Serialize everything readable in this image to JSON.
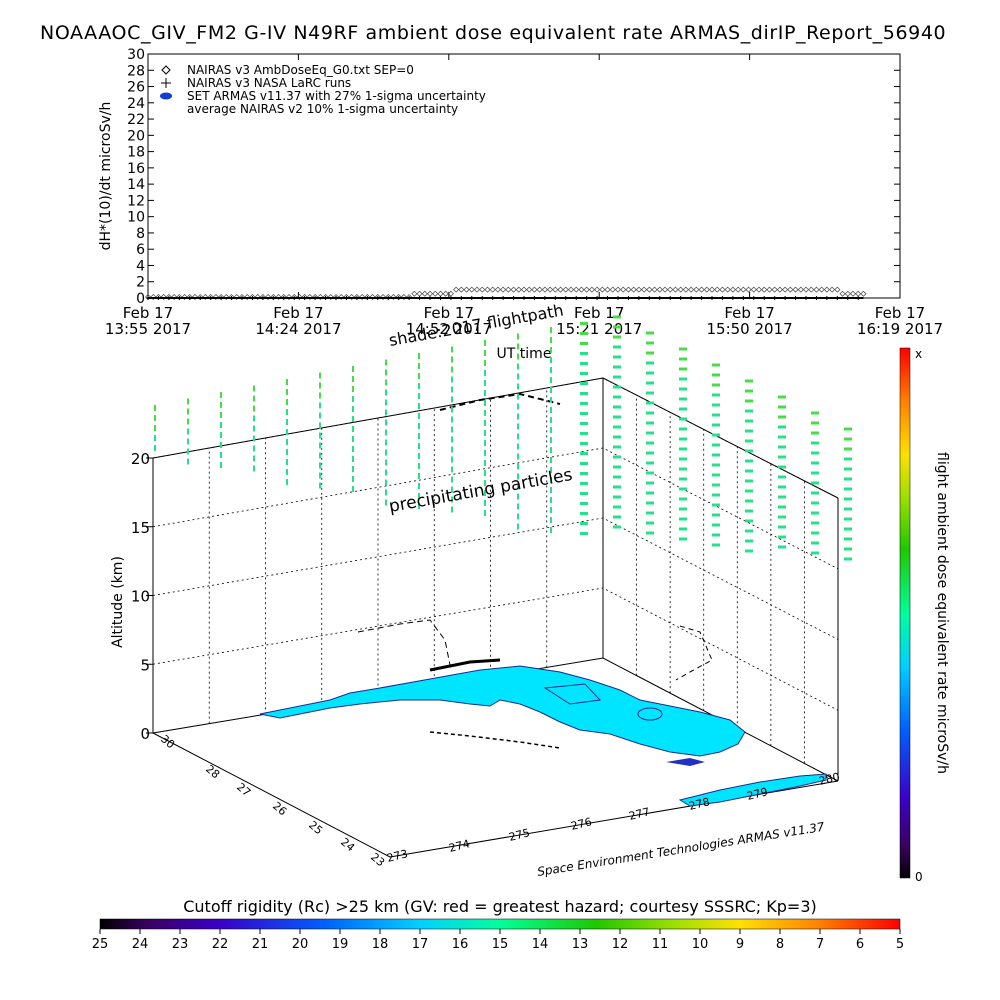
{
  "page_title": "NOAAAOC_GIV_FM2 G-IV   N49RF  ambient dose equivalent rate ARMAS_dirIP_Report_56940",
  "chart_data": [
    {
      "type": "scatter",
      "ylabel": "dH*(10)/dt microSv/h",
      "ylim": [
        0,
        30
      ],
      "yticks": [
        "0",
        "2",
        "4",
        "6",
        "8",
        "10",
        "12",
        "14",
        "16",
        "18",
        "20",
        "22",
        "24",
        "26",
        "28",
        "30"
      ],
      "xlabel": "UT time",
      "xticks": [
        {
          "d": "Feb 17",
          "t": "13:55 2017"
        },
        {
          "d": "Feb 17",
          "t": "14:24 2017"
        },
        {
          "d": "Feb 17",
          "t": "14:52 2017"
        },
        {
          "d": "Feb 17",
          "t": "15:21 2017"
        },
        {
          "d": "Feb 17",
          "t": "15:50 2017"
        },
        {
          "d": "Feb 17",
          "t": "16:19 2017"
        }
      ],
      "x_range_minutes": [
        0,
        144
      ],
      "legend": [
        "NAIRAS v3 AmbDoseEq_G0.txt SEP=0",
        "NAIRAS v3 NASA LaRC runs",
        "SET ARMAS v11.37 with 27% 1-sigma uncertainty",
        "average NAIRAS v2 10% 1-sigma uncertainty"
      ],
      "series": [
        {
          "name": "NAIRAS v3 AmbDoseEq_G0.txt SEP=0",
          "x_minutes": [
            0,
            50,
            51,
            58,
            59,
            132,
            133,
            137
          ],
          "values": [
            0,
            0,
            0.4,
            0.4,
            0.9,
            0.9,
            0.4,
            0.4
          ]
        },
        {
          "name": "NAIRAS v3 NASA LaRC runs",
          "x_minutes": [
            0,
            137
          ],
          "values": [
            0,
            0
          ]
        },
        {
          "name": "SET ARMAS v11.37 with 27% 1-sigma uncertainty",
          "x_minutes": [
            0,
            137
          ],
          "values": [
            0,
            0
          ]
        }
      ]
    },
    {
      "type": "scatter",
      "title": "",
      "zlabel": "Altitude (km)",
      "zticks": [
        "0",
        "5",
        "10",
        "15",
        "20"
      ],
      "lat_ticks": [
        "23",
        "24",
        "25",
        "26",
        "27",
        "28",
        "30"
      ],
      "lon_ticks": [
        "273",
        "274",
        "275",
        "276",
        "277",
        "278",
        "279",
        "280"
      ],
      "annotations": [
        "shade:2017 flightpath",
        "precipitating particles"
      ],
      "credit": "Space Environment Technologies ARMAS v11.37",
      "colorbar_label": "flight ambient dose equivalent rate microSv/h",
      "colorbar_ticks": [
        "x",
        "0"
      ]
    }
  ],
  "cutoff_bar": {
    "title": "Cutoff rigidity (Rc) >25 km (GV: red = greatest hazard; courtesy SSSRC; Kp=3)",
    "ticks": [
      "25",
      "24",
      "23",
      "22",
      "21",
      "20",
      "19",
      "18",
      "17",
      "16",
      "15",
      "14",
      "13",
      "12",
      "11",
      "10",
      "9",
      "8",
      "7",
      "6",
      "5"
    ]
  },
  "colors": {
    "land": "#00e5ff",
    "particles": "#26e08a",
    "particles_hi": "#47dd44"
  }
}
